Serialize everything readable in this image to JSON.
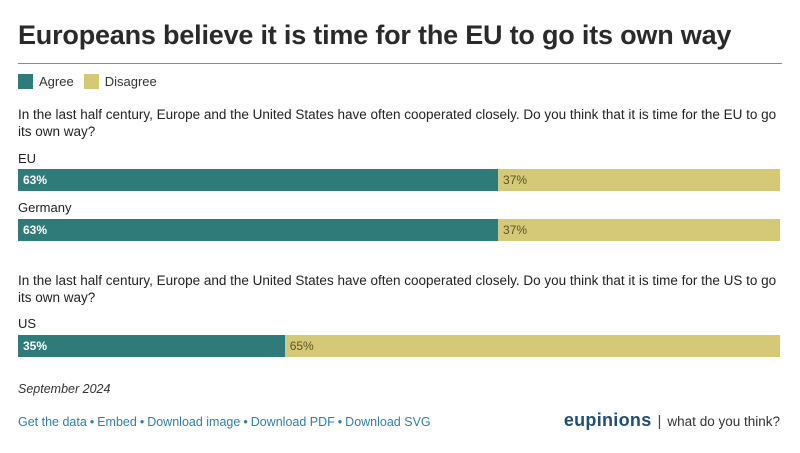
{
  "title": "Europeans believe it is time for the EU to go its own way",
  "colors": {
    "agree": "#2f7b79",
    "disagree": "#d5c978"
  },
  "legend": [
    {
      "label": "Agree",
      "color": "#2f7b79"
    },
    {
      "label": "Disagree",
      "color": "#d5c978"
    }
  ],
  "chart_data": {
    "type": "bar",
    "orientation": "horizontal",
    "stacked": true,
    "series_names": [
      "Agree",
      "Disagree"
    ],
    "groups": [
      {
        "question": "In the last half century, Europe and the United States have often cooperated closely. Do you think that it is time for the EU to go its own way?",
        "bars": [
          {
            "label": "EU",
            "agree": 63,
            "disagree": 37,
            "agree_text": "63%",
            "disagree_text": "37%"
          },
          {
            "label": "Germany",
            "agree": 63,
            "disagree": 37,
            "agree_text": "63%",
            "disagree_text": "37%"
          }
        ]
      },
      {
        "question": "In the last half century, Europe and the United States have often cooperated closely. Do you think that it is time for the US to go its own way?",
        "bars": [
          {
            "label": "US",
            "agree": 35,
            "disagree": 65,
            "agree_text": "35%",
            "disagree_text": "65%"
          }
        ]
      }
    ],
    "xlim": [
      0,
      100
    ]
  },
  "date": "September 2024",
  "footer": {
    "links": [
      "Get the data",
      "Embed",
      "Download image",
      "Download PDF",
      "Download SVG"
    ],
    "separator": "•",
    "brand": "eupinions",
    "brand_pipe": "|",
    "tagline": "what do you think?"
  }
}
